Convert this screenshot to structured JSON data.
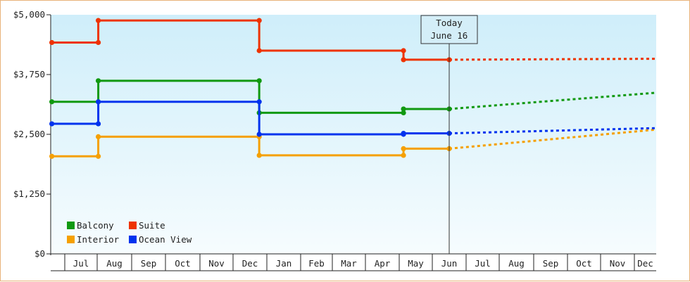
{
  "chart_data": {
    "type": "line",
    "step": true,
    "today_label": [
      "Today",
      "June 16"
    ],
    "y_ticks": [
      "$0",
      "$1,250",
      "$2,500",
      "$3,750",
      "$5,000"
    ],
    "ylim": [
      0,
      5000
    ],
    "months": [
      "Jul",
      "Aug",
      "Sep",
      "Oct",
      "Nov",
      "Dec",
      "Jan",
      "Feb",
      "Mar",
      "Apr",
      "May",
      "Jun",
      "Jul",
      "Aug",
      "Sep",
      "Oct",
      "Nov",
      "Dec"
    ],
    "grid": false,
    "legend_position": "bottom-left",
    "series": [
      {
        "name": "Balcony",
        "color": "#119911",
        "actual": [
          [
            "Jun 19",
            3180
          ],
          [
            "Aug 2",
            3180
          ],
          [
            "Aug 2",
            3620
          ],
          [
            "Dec 25",
            3620
          ],
          [
            "Dec 25",
            2950
          ],
          [
            "May 5",
            2950
          ],
          [
            "May 5",
            3030
          ],
          [
            "Jun 16",
            3030
          ]
        ],
        "forecast": [
          [
            "Jun 16",
            3030
          ],
          [
            "Dec 31",
            3370
          ]
        ]
      },
      {
        "name": "Suite",
        "color": "#ee3300",
        "actual": [
          [
            "Jun 19",
            4420
          ],
          [
            "Aug 2",
            4420
          ],
          [
            "Aug 2",
            4880
          ],
          [
            "Dec 25",
            4880
          ],
          [
            "Dec 25",
            4250
          ],
          [
            "May 5",
            4250
          ],
          [
            "May 5",
            4060
          ],
          [
            "Jun 16",
            4060
          ]
        ],
        "forecast": [
          [
            "Jun 16",
            4060
          ],
          [
            "Dec 31",
            4080
          ]
        ]
      },
      {
        "name": "Interior",
        "color": "#f5a000",
        "actual": [
          [
            "Jun 19",
            2040
          ],
          [
            "Aug 2",
            2040
          ],
          [
            "Aug 2",
            2450
          ],
          [
            "Dec 25",
            2450
          ],
          [
            "Dec 25",
            2060
          ],
          [
            "May 5",
            2060
          ],
          [
            "May 5",
            2200
          ],
          [
            "Jun 16",
            2200
          ]
        ],
        "forecast": [
          [
            "Jun 16",
            2200
          ],
          [
            "Dec 31",
            2600
          ]
        ]
      },
      {
        "name": "Ocean View",
        "color": "#0033ee",
        "actual": [
          [
            "Jun 19",
            2720
          ],
          [
            "Aug 2",
            2720
          ],
          [
            "Aug 2",
            3180
          ],
          [
            "Dec 25",
            3180
          ],
          [
            "Dec 25",
            2500
          ],
          [
            "May 5",
            2500
          ],
          [
            "May 5",
            2520
          ],
          [
            "Jun 16",
            2520
          ]
        ],
        "forecast": [
          [
            "Jun 16",
            2520
          ],
          [
            "Dec 31",
            2630
          ]
        ]
      }
    ]
  }
}
